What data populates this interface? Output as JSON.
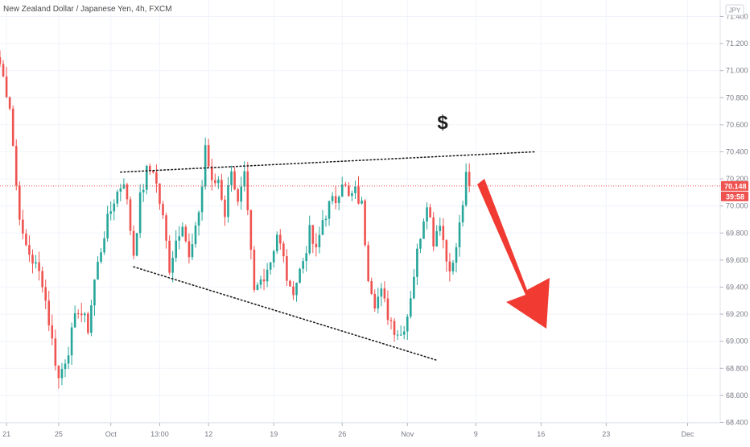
{
  "header": {
    "title": "New Zealand Dollar / Japanese Yen, 4h, FXCM",
    "currency_badge": "JPY"
  },
  "price_tag": {
    "price": "70.148",
    "countdown": "39:58",
    "color": "#ef5350"
  },
  "colors": {
    "up": "#26a69a",
    "down": "#ef5350",
    "grid": "#f0f3fa",
    "trendline": "#1e1e1e",
    "arrow": "#f03a32"
  },
  "annotations": {
    "dollar_label": "$",
    "arrow_icon": "down-right-arrow-icon"
  },
  "chart_data": {
    "type": "candlestick",
    "title": "New Zealand Dollar / Japanese Yen, 4h, FXCM",
    "ylabel": "",
    "xlabel": "",
    "ylim": [
      68.4,
      71.45
    ],
    "x_range_index": [
      0,
      230
    ],
    "grid": true,
    "y_ticks": [
      "71.400",
      "71.200",
      "71.000",
      "70.800",
      "70.600",
      "70.400",
      "70.200",
      "70.000",
      "69.800",
      "69.600",
      "69.400",
      "69.200",
      "69.000",
      "68.800",
      "68.600",
      "68.400"
    ],
    "x_ticks": [
      {
        "label": "21",
        "index": 2
      },
      {
        "label": "25",
        "index": 18
      },
      {
        "label": "Oct",
        "index": 34
      },
      {
        "label": "13:00",
        "index": 49
      },
      {
        "label": "12",
        "index": 64
      },
      {
        "label": "19",
        "index": 84
      },
      {
        "label": "26",
        "index": 105
      },
      {
        "label": "Nov",
        "index": 125
      },
      {
        "label": "9",
        "index": 146
      },
      {
        "label": "16",
        "index": 166
      },
      {
        "label": "23",
        "index": 186
      },
      {
        "label": "Dec",
        "index": 211
      }
    ],
    "close_path": [
      [
        0,
        71.05
      ],
      [
        3,
        70.75
      ],
      [
        5,
        70.15
      ],
      [
        7,
        69.75
      ],
      [
        10,
        69.6
      ],
      [
        13,
        69.45
      ],
      [
        16,
        69.0
      ],
      [
        18,
        68.72
      ],
      [
        21,
        68.95
      ],
      [
        24,
        69.25
      ],
      [
        27,
        69.1
      ],
      [
        29,
        69.45
      ],
      [
        32,
        69.8
      ],
      [
        35,
        70.05
      ],
      [
        38,
        70.2
      ],
      [
        41,
        69.65
      ],
      [
        43,
        70.05
      ],
      [
        45,
        70.25
      ],
      [
        47,
        70.28
      ],
      [
        50,
        69.9
      ],
      [
        52,
        69.55
      ],
      [
        54,
        69.75
      ],
      [
        56,
        69.9
      ],
      [
        58,
        69.6
      ],
      [
        60,
        69.8
      ],
      [
        62,
        70.15
      ],
      [
        63,
        70.45
      ],
      [
        65,
        70.15
      ],
      [
        67,
        70.2
      ],
      [
        69,
        69.95
      ],
      [
        71,
        70.3
      ],
      [
        73,
        70.0
      ],
      [
        75,
        70.2
      ],
      [
        78,
        69.35
      ],
      [
        80,
        69.45
      ],
      [
        83,
        69.6
      ],
      [
        85,
        69.8
      ],
      [
        87,
        69.6
      ],
      [
        89,
        69.35
      ],
      [
        91,
        69.45
      ],
      [
        93,
        69.6
      ],
      [
        95,
        69.8
      ],
      [
        97,
        69.65
      ],
      [
        99,
        69.9
      ],
      [
        101,
        70.0
      ],
      [
        103,
        70.05
      ],
      [
        105,
        70.2
      ],
      [
        107,
        70.05
      ],
      [
        109,
        70.1
      ],
      [
        111,
        70.0
      ],
      [
        113,
        69.5
      ],
      [
        115,
        69.3
      ],
      [
        117,
        69.35
      ],
      [
        119,
        69.2
      ],
      [
        121,
        69.1
      ],
      [
        123,
        69.05
      ],
      [
        125,
        69.2
      ],
      [
        127,
        69.5
      ],
      [
        129,
        69.8
      ],
      [
        131,
        70.05
      ],
      [
        133,
        69.75
      ],
      [
        135,
        69.9
      ],
      [
        137,
        69.6
      ],
      [
        139,
        69.55
      ],
      [
        141,
        69.85
      ],
      [
        143,
        70.2
      ],
      [
        144,
        70.15
      ]
    ],
    "candles_generated_from_path": true,
    "trendlines": [
      {
        "name": "upper",
        "from": [
          37,
          70.25
        ],
        "to": [
          164,
          70.4
        ]
      },
      {
        "name": "lower",
        "from": [
          41,
          69.55
        ],
        "to": [
          134,
          68.86
        ]
      }
    ],
    "current_price": 70.148
  }
}
